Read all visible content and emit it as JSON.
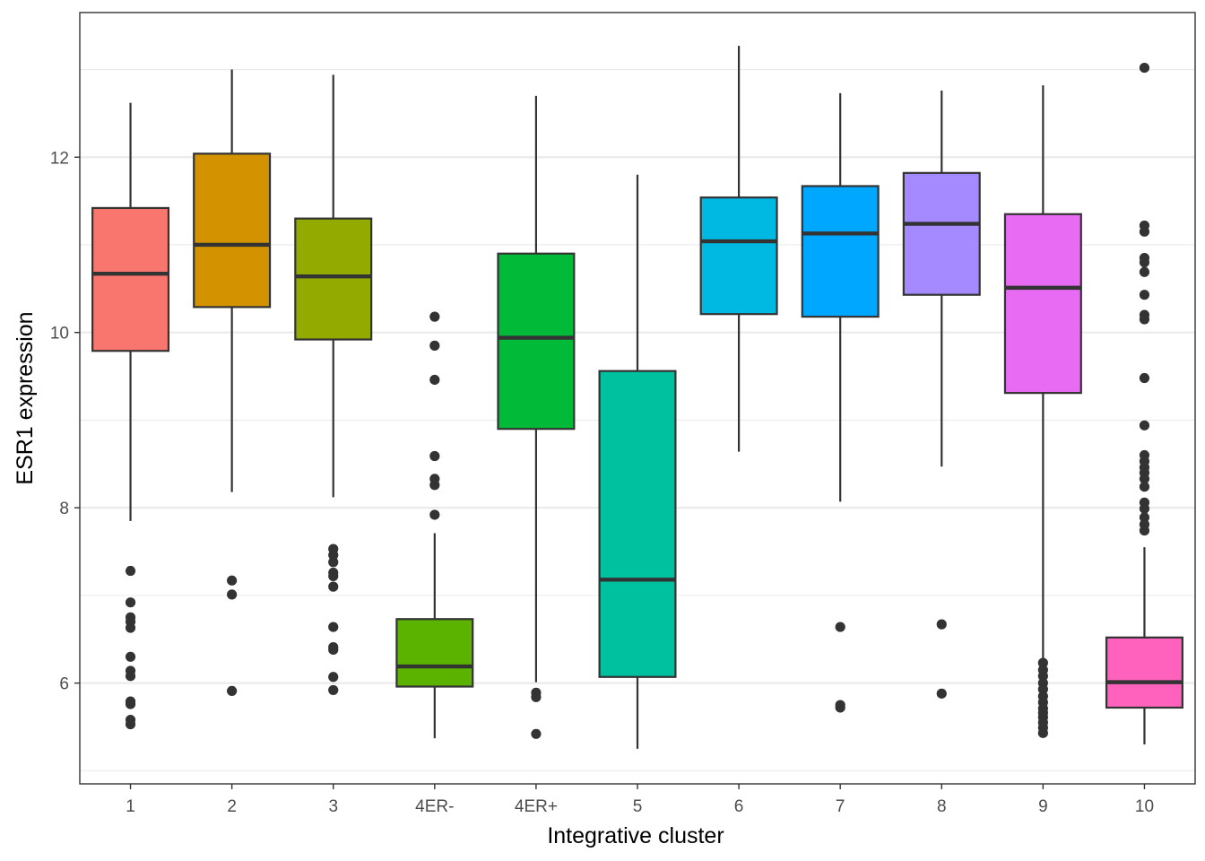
{
  "chart_data": {
    "type": "boxplot",
    "xlabel": "Integrative cluster",
    "ylabel": "ESR1 expression",
    "ylim": [
      4.85,
      13.65
    ],
    "y_ticks": [
      6,
      8,
      10,
      12
    ],
    "grid": true,
    "legend": "none",
    "categories": [
      "1",
      "2",
      "3",
      "4ER-",
      "4ER+",
      "5",
      "6",
      "7",
      "8",
      "9",
      "10"
    ],
    "boxes": [
      {
        "category": "1",
        "color": "#F8766D",
        "whisker_low": 7.85,
        "q1": 9.79,
        "median": 10.67,
        "q3": 11.42,
        "whisker_high": 12.62,
        "outliers": [
          7.28,
          6.92,
          6.75,
          6.7,
          6.63,
          6.3,
          6.14,
          6.08,
          5.79,
          5.76,
          5.58,
          5.53
        ]
      },
      {
        "category": "2",
        "color": "#D39200",
        "whisker_low": 8.18,
        "q1": 10.29,
        "median": 11.0,
        "q3": 12.04,
        "whisker_high": 13.0,
        "outliers": [
          7.17,
          7.01,
          5.91
        ]
      },
      {
        "category": "3",
        "color": "#93AA00",
        "whisker_low": 8.12,
        "q1": 9.92,
        "median": 10.64,
        "q3": 11.3,
        "whisker_high": 12.94,
        "outliers": [
          7.53,
          7.46,
          7.38,
          7.26,
          7.22,
          7.1,
          6.64,
          6.41,
          6.38,
          6.07,
          5.92
        ]
      },
      {
        "category": "4ER-",
        "color": "#5BB300",
        "whisker_low": 5.37,
        "q1": 5.96,
        "median": 6.19,
        "q3": 6.73,
        "whisker_high": 7.71,
        "outliers": [
          10.18,
          9.85,
          9.46,
          8.59,
          8.33,
          8.26,
          7.92
        ]
      },
      {
        "category": "4ER+",
        "color": "#00BA38",
        "whisker_low": 6.01,
        "q1": 8.9,
        "median": 9.94,
        "q3": 10.9,
        "whisker_high": 12.7,
        "outliers": [
          5.89,
          5.84,
          5.42
        ]
      },
      {
        "category": "5",
        "color": "#00C19F",
        "whisker_low": 5.25,
        "q1": 6.07,
        "median": 7.18,
        "q3": 9.56,
        "whisker_high": 11.8,
        "outliers": []
      },
      {
        "category": "6",
        "color": "#00B9E3",
        "whisker_low": 8.64,
        "q1": 10.21,
        "median": 11.04,
        "q3": 11.54,
        "whisker_high": 13.27,
        "outliers": []
      },
      {
        "category": "7",
        "color": "#00A7FF",
        "whisker_low": 8.07,
        "q1": 10.18,
        "median": 11.13,
        "q3": 11.67,
        "whisker_high": 12.73,
        "outliers": [
          6.64,
          5.75,
          5.72
        ]
      },
      {
        "category": "8",
        "color": "#A58AFF",
        "whisker_low": 8.47,
        "q1": 10.43,
        "median": 11.24,
        "q3": 11.82,
        "whisker_high": 12.76,
        "outliers": [
          6.67,
          5.88
        ]
      },
      {
        "category": "9",
        "color": "#E76BF3",
        "whisker_low": 6.24,
        "q1": 9.31,
        "median": 10.51,
        "q3": 11.35,
        "whisker_high": 12.82,
        "outliers": [
          6.23,
          6.15,
          6.08,
          6.0,
          5.93,
          5.85,
          5.78,
          5.71,
          5.66,
          5.61,
          5.55,
          5.49,
          5.43
        ]
      },
      {
        "category": "10",
        "color": "#FF62BC",
        "whisker_low": 5.3,
        "q1": 5.72,
        "median": 6.01,
        "q3": 6.52,
        "whisker_high": 7.55,
        "outliers": [
          13.02,
          11.22,
          11.15,
          10.85,
          10.8,
          10.69,
          10.43,
          10.2,
          10.15,
          9.48,
          8.94,
          8.6,
          8.53,
          8.46,
          8.4,
          8.33,
          8.24,
          8.06,
          7.99,
          7.89,
          7.81,
          7.74
        ]
      }
    ]
  }
}
